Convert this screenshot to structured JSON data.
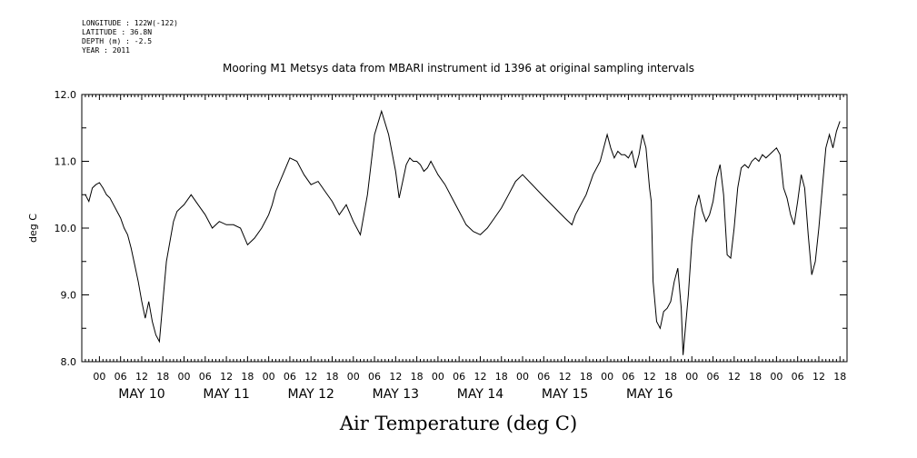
{
  "header": {
    "longitude": "LONGITUDE : 122W(-122)",
    "latitude": "LATITUDE : 36.8N",
    "depth": "DEPTH (m) : -2.5",
    "year": "YEAR : 2011"
  },
  "chart_data": {
    "type": "line",
    "title": "Mooring M1 Metsys data from MBARI instrument id 1396 at original sampling intervals",
    "xlabel": "Air Temperature (deg C)",
    "ylabel": "deg C",
    "ylim": [
      8.0,
      12.0
    ],
    "yticks": [
      "8.0",
      "9.0",
      "10.0",
      "11.0",
      "12.0"
    ],
    "xlim_hours": [
      -5,
      212
    ],
    "hour_tick_labels": [
      "00",
      "06",
      "12",
      "18"
    ],
    "day_labels": [
      "MAY 10",
      "MAY 11",
      "MAY 12",
      "MAY 13",
      "MAY 14",
      "MAY 15",
      "MAY 16"
    ],
    "x_origin": "2011-05-10 00:00",
    "series": [
      {
        "name": "",
        "x_hours": [
          -4,
          -3,
          -2,
          -1,
          0,
          1,
          2,
          3,
          4,
          5,
          6,
          7,
          8,
          9,
          10,
          11,
          12,
          13,
          14,
          15,
          16,
          17,
          18,
          19,
          20,
          21,
          22,
          23,
          24,
          26,
          28,
          30,
          32,
          34,
          36,
          38,
          40,
          42,
          44,
          46,
          47.5,
          48,
          49,
          50,
          52,
          54,
          56,
          58,
          60,
          62,
          64,
          66,
          68,
          70,
          72,
          74,
          76,
          78,
          80,
          82,
          84,
          85,
          86,
          87,
          88,
          89,
          90,
          91,
          92,
          93,
          94,
          95,
          96,
          98,
          100,
          102,
          104,
          106,
          108,
          110,
          112,
          114,
          116,
          118,
          120,
          126,
          132,
          133,
          134,
          135,
          136,
          138,
          140,
          142,
          144,
          145,
          146,
          147,
          148,
          149,
          150,
          151,
          152,
          153,
          154,
          155,
          156,
          156.5,
          157,
          158,
          159,
          160,
          161,
          162,
          163,
          164,
          165,
          165.5,
          166,
          167,
          168,
          169,
          170,
          171,
          172,
          173,
          174,
          175,
          176,
          177,
          178,
          179,
          180,
          181,
          182,
          183,
          184,
          185,
          186,
          187,
          188,
          189,
          190,
          191,
          192,
          193,
          194,
          195,
          196,
          197,
          198,
          199,
          200,
          201,
          202,
          203,
          204,
          205,
          206,
          207,
          208,
          209,
          210
        ],
        "values": [
          10.5,
          10.4,
          10.6,
          10.65,
          10.68,
          10.6,
          10.5,
          10.45,
          10.35,
          10.25,
          10.15,
          10.0,
          9.9,
          9.7,
          9.45,
          9.2,
          8.9,
          8.65,
          8.9,
          8.6,
          8.4,
          8.3,
          8.9,
          9.5,
          9.8,
          10.1,
          10.25,
          10.3,
          10.35,
          10.5,
          10.35,
          10.2,
          10.0,
          10.1,
          10.05,
          10.05,
          10.0,
          9.75,
          9.85,
          10.0,
          10.15,
          10.2,
          10.35,
          10.55,
          10.8,
          11.05,
          11.0,
          10.8,
          10.65,
          10.7,
          10.55,
          10.4,
          10.2,
          10.35,
          10.1,
          9.9,
          10.5,
          11.4,
          11.75,
          11.4,
          10.85,
          10.45,
          10.7,
          10.95,
          11.05,
          11.0,
          11.0,
          10.95,
          10.85,
          10.9,
          11.0,
          10.9,
          10.8,
          10.65,
          10.45,
          10.25,
          10.05,
          9.95,
          9.9,
          10.0,
          10.15,
          10.3,
          10.5,
          10.7,
          10.8,
          10.47,
          10.15,
          10.1,
          10.05,
          10.2,
          10.3,
          10.5,
          10.8,
          11.0,
          11.4,
          11.2,
          11.05,
          11.15,
          11.1,
          11.1,
          11.05,
          11.15,
          10.9,
          11.1,
          11.4,
          11.2,
          10.6,
          10.4,
          9.2,
          8.6,
          8.5,
          8.75,
          8.8,
          8.9,
          9.2,
          9.4,
          8.8,
          8.1,
          8.4,
          9.0,
          9.8,
          10.3,
          10.5,
          10.25,
          10.1,
          10.2,
          10.4,
          10.75,
          10.95,
          10.5,
          9.6,
          9.55,
          10.0,
          10.6,
          10.9,
          10.95,
          10.9,
          11.0,
          11.05,
          11.0,
          11.1,
          11.05,
          11.1,
          11.15,
          11.2,
          11.1,
          10.6,
          10.45,
          10.2,
          10.05,
          10.4,
          10.8,
          10.6,
          9.9,
          9.3,
          9.5,
          10.0,
          10.6,
          11.2,
          11.4,
          11.2,
          11.45,
          11.6
        ]
      }
    ]
  }
}
